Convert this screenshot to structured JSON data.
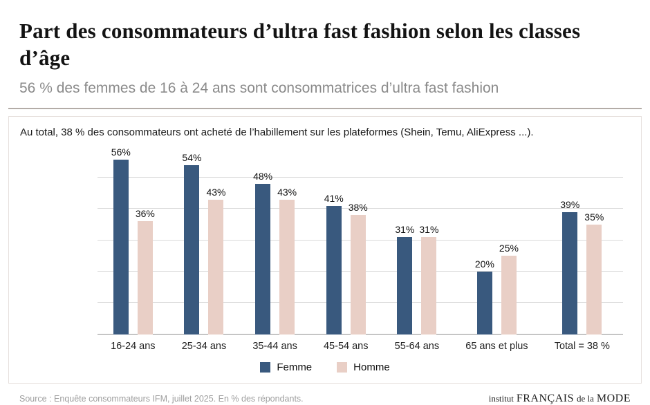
{
  "header": {
    "title": "Part des consommateurs d’ultra fast fashion selon les classes d’âge",
    "subtitle": "56 % des femmes de 16 à 24 ans sont consommatrices d’ultra fast fashion"
  },
  "panel": {
    "annotation": "Au total, 38 % des consommateurs ont acheté de l’habillement sur les plateformes (Shein, Temu, AliExpress ...)."
  },
  "chart_data": {
    "type": "bar",
    "title": "Part des consommateurs d’ultra fast fashion selon les classes d’âge",
    "categories": [
      "16-24 ans",
      "25-34 ans",
      "35-44 ans",
      "45-54 ans",
      "55-64 ans",
      "65 ans et plus",
      "Total = 38 %"
    ],
    "series": [
      {
        "name": "Femme",
        "color": "#39597e",
        "values": [
          56,
          54,
          48,
          41,
          31,
          20,
          39
        ]
      },
      {
        "name": "Homme",
        "color": "#e9cfc6",
        "values": [
          36,
          43,
          43,
          38,
          31,
          25,
          35
        ]
      }
    ],
    "value_suffix": "%",
    "xlabel": "",
    "ylabel": "",
    "ylim": [
      0,
      60
    ],
    "grid_step": 10,
    "grid": true,
    "legend_position": "bottom"
  },
  "footer": {
    "source": "Source : Enquête consommateurs IFM, juillet 2025. En % des répondants.",
    "logo_parts": [
      "institut",
      "FRANÇAIS",
      "de la",
      "MODE"
    ]
  }
}
